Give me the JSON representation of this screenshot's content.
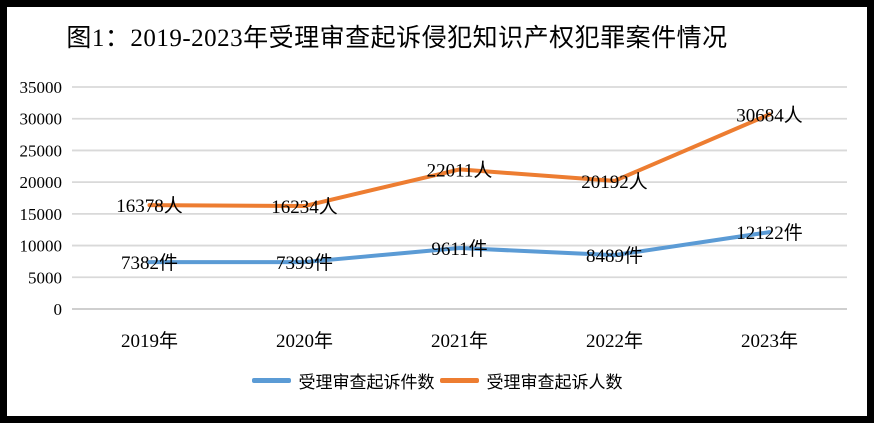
{
  "title": "图1：2019-2023年受理审查起诉侵犯知识产权犯罪案件情况",
  "chart_data": {
    "type": "line",
    "title": "图1：2019-2023年受理审查起诉侵犯知识产权犯罪案件情况",
    "categories": [
      "2019年",
      "2020年",
      "2021年",
      "2022年",
      "2023年"
    ],
    "series": [
      {
        "name": "受理审查起诉件数",
        "unit": "件",
        "color": "#5B9BD5",
        "values": [
          7382,
          7399,
          9611,
          8489,
          12122
        ],
        "labels": [
          "7382件",
          "7399件",
          "9611件",
          "8489件",
          "12122件"
        ]
      },
      {
        "name": "受理审查起诉人数",
        "unit": "人",
        "color": "#ED7D31",
        "values": [
          16378,
          16234,
          22011,
          20192,
          30684
        ],
        "labels": [
          "16378人",
          "16234人",
          "22011人",
          "20192人",
          "30684人"
        ]
      }
    ],
    "xlabel": "",
    "ylabel": "",
    "ylim": [
      0,
      35000
    ],
    "ytick_step": 5000,
    "yticks": [
      "0",
      "5000",
      "10000",
      "15000",
      "20000",
      "25000",
      "30000",
      "35000"
    ],
    "grid": "horizontal",
    "gridline_color": "#D9D9D9",
    "axis_color": "#BFBFBF",
    "legend_position": "bottom",
    "frame_border_color": "#000000"
  }
}
